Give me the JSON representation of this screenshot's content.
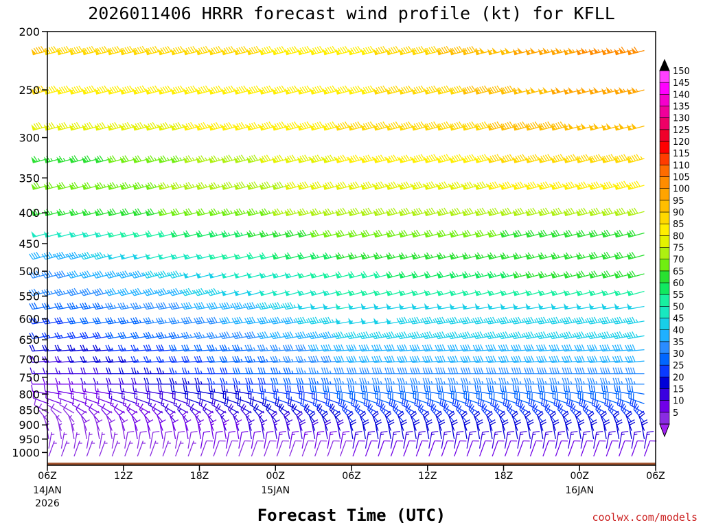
{
  "chart_data": {
    "type": "wind-barb-profile",
    "title": "2026011406 HRRR forecast wind profile (kt) for KFLL",
    "xlabel": "Forecast Time (UTC)",
    "ylabel": "",
    "credit": "coolwx.com/models",
    "units": "kt",
    "y_axis": {
      "scale": "log-pressure",
      "range": [
        1050,
        200
      ],
      "ticks": [
        200,
        250,
        300,
        350,
        400,
        450,
        500,
        550,
        600,
        650,
        700,
        750,
        800,
        850,
        900,
        950,
        1000
      ],
      "tick_labels": [
        "200",
        "250",
        "300",
        "350",
        "400",
        "450",
        "500",
        "550",
        "600",
        "650",
        "700",
        "750",
        "800",
        "850",
        "900",
        "950",
        "1000"
      ]
    },
    "x_axis": {
      "range_hours": [
        0,
        48
      ],
      "ticks": [
        {
          "hour": 0,
          "label": "06Z",
          "date": "14JAN",
          "year": "2026"
        },
        {
          "hour": 6,
          "label": "12Z"
        },
        {
          "hour": 12,
          "label": "18Z"
        },
        {
          "hour": 18,
          "label": "00Z",
          "date": "15JAN"
        },
        {
          "hour": 24,
          "label": "06Z"
        },
        {
          "hour": 30,
          "label": "12Z"
        },
        {
          "hour": 36,
          "label": "18Z"
        },
        {
          "hour": 42,
          "label": "00Z",
          "date": "16JAN"
        },
        {
          "hour": 48,
          "label": "06Z"
        }
      ]
    },
    "pressure_levels": [
      215,
      250,
      287,
      325,
      360,
      398,
      432,
      470,
      505,
      540,
      572,
      605,
      640,
      675,
      705,
      740,
      770,
      800,
      830,
      860,
      890,
      920,
      950,
      985,
      1015
    ],
    "level_speed_profiles": [
      {
        "p": 215,
        "start": 95,
        "mid": 88,
        "end": 110,
        "dir": 255
      },
      {
        "p": 250,
        "start": 90,
        "mid": 88,
        "end": 105,
        "dir": 255
      },
      {
        "p": 287,
        "start": 80,
        "mid": 90,
        "end": 100,
        "dir": 255
      },
      {
        "p": 325,
        "start": 65,
        "mid": 85,
        "end": 95,
        "dir": 255
      },
      {
        "p": 360,
        "start": 70,
        "mid": 82,
        "end": 88,
        "dir": 255
      },
      {
        "p": 398,
        "start": 65,
        "mid": 78,
        "end": 80,
        "dir": 255
      },
      {
        "p": 432,
        "start": 50,
        "mid": 72,
        "end": 68,
        "dir": 255
      },
      {
        "p": 470,
        "start": 42,
        "mid": 65,
        "end": 68,
        "dir": 255
      },
      {
        "p": 505,
        "start": 38,
        "mid": 58,
        "end": 70,
        "dir": 255
      },
      {
        "p": 540,
        "start": 35,
        "mid": 55,
        "end": 55,
        "dir": 255
      },
      {
        "p": 572,
        "start": 30,
        "mid": 50,
        "end": 48,
        "dir": 260
      },
      {
        "p": 605,
        "start": 28,
        "mid": 48,
        "end": 45,
        "dir": 260
      },
      {
        "p": 640,
        "start": 25,
        "mid": 45,
        "end": 45,
        "dir": 260
      },
      {
        "p": 675,
        "start": 20,
        "mid": 42,
        "end": 40,
        "dir": 265
      },
      {
        "p": 705,
        "start": 18,
        "mid": 40,
        "end": 40,
        "dir": 265
      },
      {
        "p": 740,
        "start": 15,
        "mid": 38,
        "end": 38,
        "dir": 270
      },
      {
        "p": 770,
        "start": 12,
        "mid": 35,
        "end": 35,
        "dir": 270
      },
      {
        "p": 800,
        "start": 10,
        "mid": 32,
        "end": 30,
        "dir": 280
      },
      {
        "p": 830,
        "start": 10,
        "mid": 30,
        "end": 30,
        "dir": 290
      },
      {
        "p": 860,
        "start": 8,
        "mid": 28,
        "end": 28,
        "dir": 300
      },
      {
        "p": 890,
        "start": 8,
        "mid": 25,
        "end": 25,
        "dir": 320
      },
      {
        "p": 920,
        "start": 6,
        "mid": 22,
        "end": 22,
        "dir": 340
      },
      {
        "p": 950,
        "start": 6,
        "mid": 20,
        "end": 20,
        "dir": 350
      },
      {
        "p": 985,
        "start": 5,
        "mid": 15,
        "end": 15,
        "dir": 10
      },
      {
        "p": 1015,
        "start": 5,
        "mid": 10,
        "end": 12,
        "dir": 20
      }
    ],
    "barb_interval_hours": 1,
    "colorbar": {
      "values": [
        5,
        10,
        15,
        20,
        25,
        30,
        35,
        40,
        45,
        50,
        55,
        60,
        65,
        70,
        75,
        80,
        85,
        90,
        95,
        100,
        105,
        110,
        115,
        120,
        125,
        130,
        135,
        140,
        145,
        150
      ],
      "colors": [
        "#8a2be2",
        "#7000e8",
        "#3a00e0",
        "#0000d8",
        "#0a3aff",
        "#0066ff",
        "#2a8cff",
        "#1fb0ff",
        "#18cfe8",
        "#18e8c0",
        "#18f0a0",
        "#10e860",
        "#28e030",
        "#70ee10",
        "#aef010",
        "#e4f200",
        "#ffee00",
        "#ffd800",
        "#ffbe00",
        "#ffa400",
        "#ff8c00",
        "#ff6c00",
        "#ff3c00",
        "#ff0000",
        "#f0002a",
        "#ee0066",
        "#f0009a",
        "#f400cc",
        "#ff00ff",
        "#ff40ff"
      ],
      "end_colors": {
        "low": "#a020f0",
        "high": "#000000"
      }
    },
    "ground_color": "#a0522d"
  }
}
